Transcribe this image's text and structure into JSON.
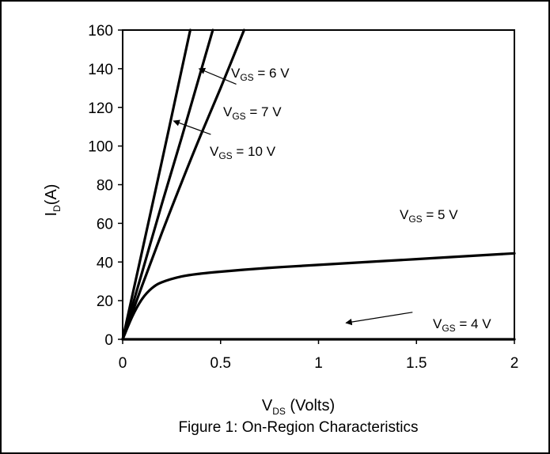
{
  "chart_data": {
    "type": "line",
    "caption": "Figure 1: On-Region Characteristics",
    "xlabel": {
      "main": "V",
      "sub": "DS",
      "rest": " (Volts)"
    },
    "ylabel": {
      "main": "I",
      "sub": "D",
      "rest": "(A)"
    },
    "xlim": [
      0,
      2
    ],
    "ylim": [
      0,
      160
    ],
    "x_ticks": [
      {
        "value": 0,
        "label": "0"
      },
      {
        "value": 0.5,
        "label": "0.5"
      },
      {
        "value": 1,
        "label": "1"
      },
      {
        "value": 1.5,
        "label": "1.5"
      },
      {
        "value": 2,
        "label": "2"
      }
    ],
    "y_ticks": [
      {
        "value": 0,
        "label": "0"
      },
      {
        "value": 20,
        "label": "20"
      },
      {
        "value": 40,
        "label": "40"
      },
      {
        "value": 60,
        "label": "60"
      },
      {
        "value": 80,
        "label": "80"
      },
      {
        "value": 100,
        "label": "100"
      },
      {
        "value": 120,
        "label": "120"
      },
      {
        "value": 140,
        "label": "140"
      },
      {
        "value": 160,
        "label": "160"
      }
    ],
    "grid": false,
    "legend": "none",
    "line_color": "#000000",
    "series": [
      {
        "name": "V_GS = 10 V",
        "x": [
          0,
          0.1,
          0.2,
          0.3,
          0.345
        ],
        "y": [
          0,
          46,
          92,
          139,
          160
        ]
      },
      {
        "name": "V_GS = 7 V",
        "x": [
          0,
          0.1,
          0.2,
          0.3,
          0.4,
          0.46
        ],
        "y": [
          0,
          35,
          70,
          104,
          139,
          160
        ]
      },
      {
        "name": "V_GS = 6 V",
        "x": [
          0,
          0.1,
          0.2,
          0.3,
          0.4,
          0.5,
          0.62
        ],
        "y": [
          0,
          28,
          55,
          81,
          106,
          130,
          160
        ]
      },
      {
        "name": "V_GS = 5 V",
        "x": [
          0,
          0.05,
          0.1,
          0.15,
          0.2,
          0.3,
          0.4,
          0.5,
          0.75,
          1,
          1.5,
          2
        ],
        "y": [
          0,
          12,
          21,
          26.5,
          29.5,
          32.5,
          34,
          35,
          37,
          38.5,
          41.5,
          44.5
        ]
      },
      {
        "name": "V_GS = 4 V",
        "x": [
          0,
          0.5,
          1,
          1.5,
          2
        ],
        "y": [
          0,
          0,
          0,
          0,
          0
        ]
      }
    ],
    "annotations": [
      {
        "id": "6v",
        "main": "V",
        "sub": "GS",
        "rest": " = 6 V"
      },
      {
        "id": "7v",
        "main": "V",
        "sub": "GS",
        "rest": " = 7 V"
      },
      {
        "id": "10v",
        "main": "V",
        "sub": "GS",
        "rest": " = 10 V"
      },
      {
        "id": "5v",
        "main": "V",
        "sub": "GS",
        "rest": " = 5 V"
      },
      {
        "id": "4v",
        "main": "V",
        "sub": "GS",
        "rest": " = 4 V"
      }
    ]
  }
}
